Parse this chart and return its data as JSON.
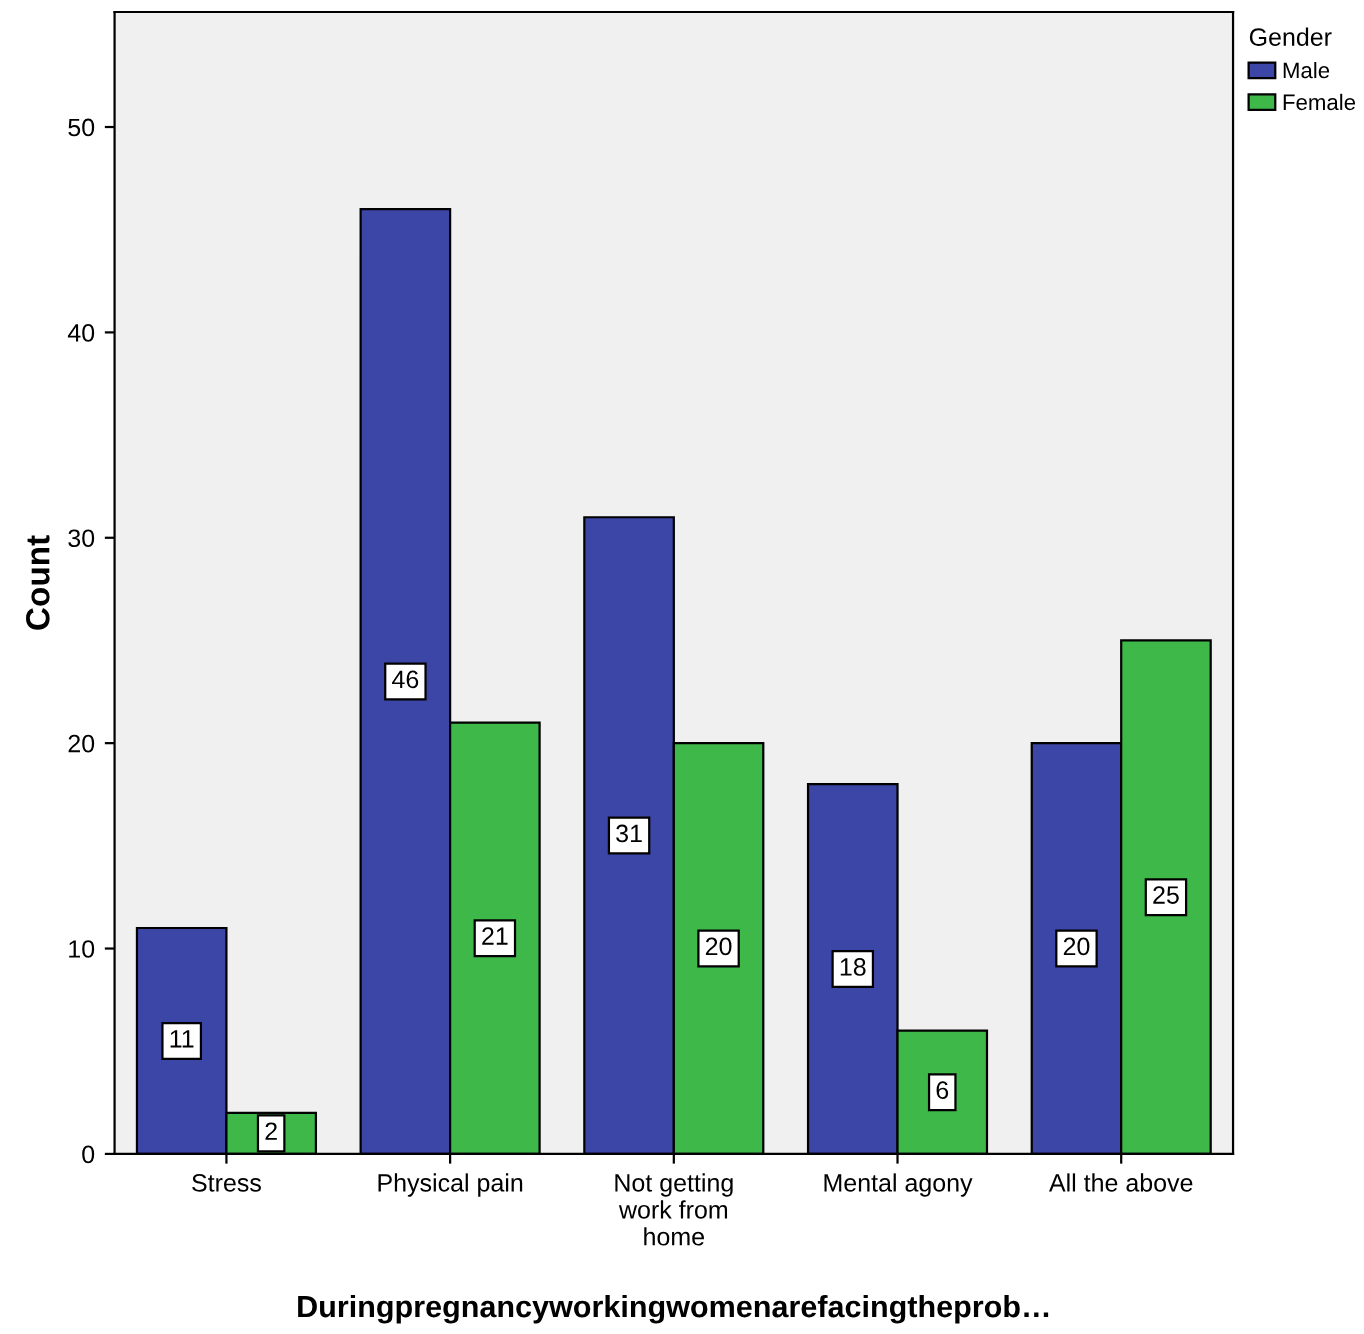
{
  "chart_data": {
    "type": "bar",
    "xlabel": "Duringpregnancyworkingwomenarefacingtheprob…",
    "ylabel": "Count",
    "legend_title": "Gender",
    "categories": [
      "Stress",
      "Physical pain",
      "Not getting\nwork from\nhome",
      "Mental agony",
      "All the above"
    ],
    "series": [
      {
        "name": "Male",
        "color": "#3c46a6",
        "values": [
          11,
          46,
          31,
          18,
          20
        ]
      },
      {
        "name": "Female",
        "color": "#3fb84a",
        "values": [
          2,
          21,
          20,
          6,
          25
        ]
      }
    ],
    "ylim": [
      0,
      55.6
    ],
    "yticks": [
      0,
      10,
      20,
      30,
      40,
      50
    ],
    "grid": false,
    "legend": "top right",
    "data_labels": true
  }
}
